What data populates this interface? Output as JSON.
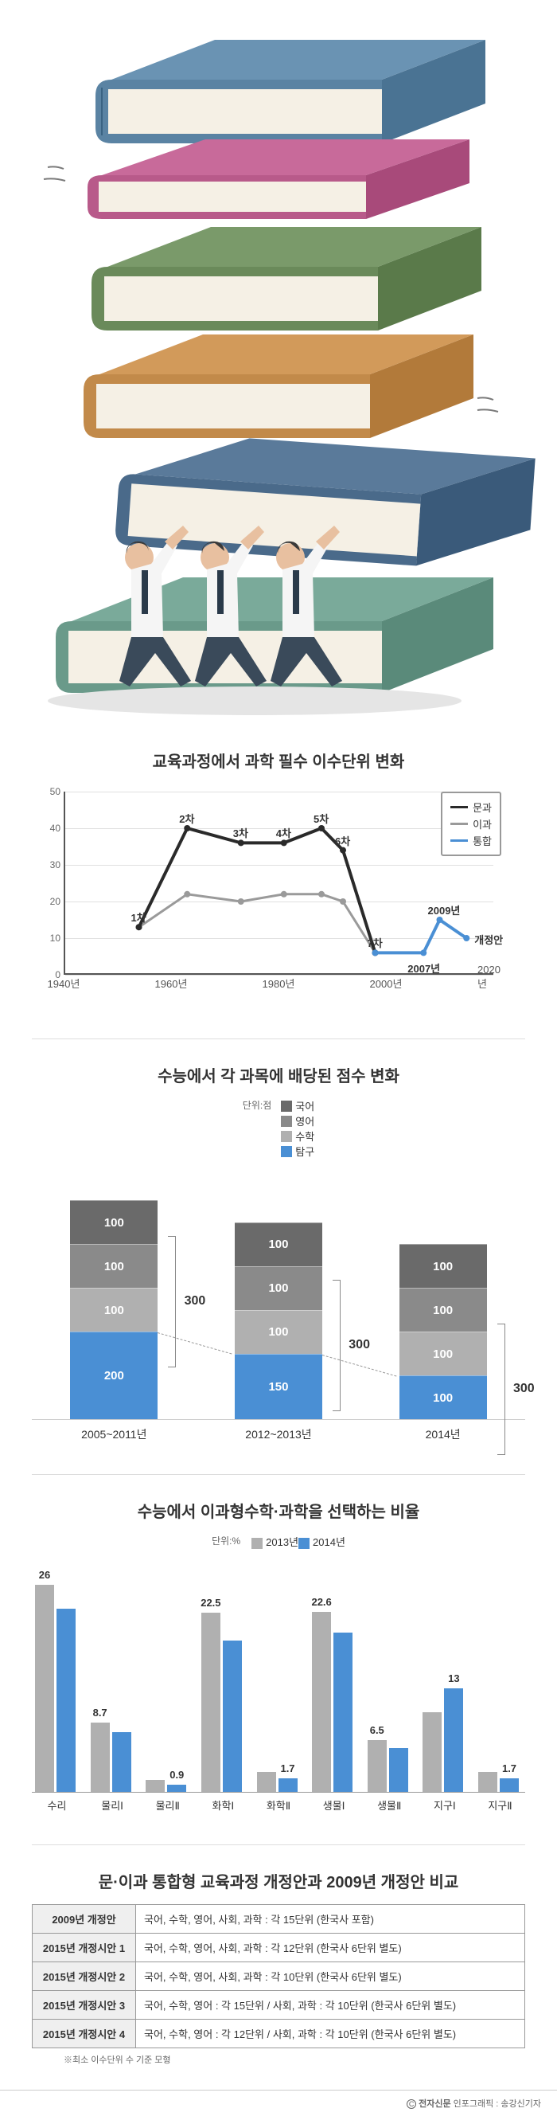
{
  "colors": {
    "book_blue": "#5a83a3",
    "book_magenta": "#b85a8a",
    "book_green": "#6a8a5a",
    "book_orange": "#c28a4a",
    "book_navy": "#4a6a8a",
    "book_teal": "#6a9a8a",
    "skin": "#e8c0a0",
    "shirt": "#f5f5f5",
    "pants": "#3a4a5a",
    "tie": "#2a3a4a",
    "line_munkwa": "#2a2a2a",
    "line_igwa": "#9a9a9a",
    "line_tonghap": "#4a8fd4",
    "bar_gugeo": "#6a6a6a",
    "bar_yeongeo": "#8a8a8a",
    "bar_suhak": "#b0b0b0",
    "bar_tamgu": "#4a8fd4",
    "gb_2013": "#b0b0b0",
    "gb_2014": "#4a8fd4",
    "grid": "#e0e0e0",
    "axis": "#555555",
    "table_header": "#efefef"
  },
  "line_chart": {
    "title": "교육과정에서 과학 필수 이수단위 변화",
    "legend": [
      {
        "label": "문과",
        "color_key": "line_munkwa"
      },
      {
        "label": "이과",
        "color_key": "line_igwa"
      },
      {
        "label": "통합",
        "color_key": "line_tonghap"
      }
    ],
    "ylim": [
      0,
      50
    ],
    "ytick_step": 10,
    "xlim": [
      1940,
      2020
    ],
    "xtick_step": 20,
    "xticks": [
      "1940년",
      "1960년",
      "1980년",
      "2000년",
      "2020년"
    ],
    "series": {
      "munkwa": [
        {
          "x": 1954,
          "y": 13,
          "label": "1차"
        },
        {
          "x": 1963,
          "y": 40,
          "label": "2차"
        },
        {
          "x": 1973,
          "y": 36,
          "label": "3차"
        },
        {
          "x": 1981,
          "y": 36,
          "label": "4차"
        },
        {
          "x": 1988,
          "y": 40,
          "label": "5차"
        },
        {
          "x": 1992,
          "y": 34,
          "label": "6차"
        },
        {
          "x": 1998,
          "y": 6,
          "label": "7차"
        }
      ],
      "igwa": [
        {
          "x": 1954,
          "y": 13
        },
        {
          "x": 1963,
          "y": 22
        },
        {
          "x": 1973,
          "y": 20
        },
        {
          "x": 1981,
          "y": 22
        },
        {
          "x": 1988,
          "y": 22
        },
        {
          "x": 1992,
          "y": 20
        },
        {
          "x": 1998,
          "y": 6
        }
      ],
      "tonghap": [
        {
          "x": 1998,
          "y": 6
        },
        {
          "x": 2007,
          "y": 6,
          "label": "2007년",
          "label_pos": "below"
        },
        {
          "x": 2010,
          "y": 15,
          "label": "2009년",
          "label_pos": "above"
        },
        {
          "x": 2015,
          "y": 10,
          "label": "개정안",
          "label_pos": "right"
        }
      ]
    }
  },
  "stacked_bar": {
    "title": "수능에서 각 과목에 배당된 점수 변화",
    "unit": "단위:점",
    "legend": [
      {
        "label": "국어",
        "color_key": "bar_gugeo"
      },
      {
        "label": "영어",
        "color_key": "bar_yeongeo"
      },
      {
        "label": "수학",
        "color_key": "bar_suhak"
      },
      {
        "label": "탐구",
        "color_key": "bar_tamgu"
      }
    ],
    "xlabels": [
      "2005~2011년",
      "2012~2013년",
      "2014년"
    ],
    "total_label": "300",
    "groups": [
      {
        "segs": [
          100,
          100,
          100,
          200
        ]
      },
      {
        "segs": [
          100,
          100,
          100,
          150
        ]
      },
      {
        "segs": [
          100,
          100,
          100,
          100
        ]
      }
    ],
    "y_scale": 0.55
  },
  "grouped_bar": {
    "title": "수능에서 이과형수학·과학을 선택하는 비율",
    "unit": "단위:%",
    "legend": [
      {
        "label": "2013년",
        "color_key": "gb_2013"
      },
      {
        "label": "2014년",
        "color_key": "gb_2014"
      }
    ],
    "ymax": 30,
    "categories": [
      "수리",
      "물리Ⅰ",
      "물리Ⅱ",
      "화학Ⅰ",
      "화학Ⅱ",
      "생물Ⅰ",
      "생물Ⅱ",
      "지구Ⅰ",
      "지구Ⅱ"
    ],
    "values_2013": [
      26,
      8.7,
      1.5,
      22.5,
      2.5,
      22.6,
      6.5,
      10,
      2.5
    ],
    "values_2014": [
      23,
      7.5,
      0.9,
      19,
      1.7,
      20,
      5.5,
      13,
      1.7
    ],
    "shown_labels_2013": [
      26,
      8.7,
      null,
      22.5,
      null,
      22.6,
      6.5,
      null,
      null
    ],
    "shown_labels_2014": [
      null,
      null,
      0.9,
      null,
      1.7,
      null,
      null,
      13,
      1.7
    ]
  },
  "table": {
    "title": "문·이과 통합형 교육과정 개정안과 2009년 개정안 비교",
    "rows": [
      {
        "h": "2009년 개정안",
        "d": "국어, 수학, 영어, 사회, 과학 : 각 15단위 (한국사 포함)"
      },
      {
        "h": "2015년 개정시안 1",
        "d": "국어, 수학, 영어, 사회, 과학 : 각 12단위 (한국사 6단위 별도)"
      },
      {
        "h": "2015년 개정시안 2",
        "d": "국어, 수학, 영어, 사회, 과학 : 각 10단위 (한국사 6단위 별도)"
      },
      {
        "h": "2015년 개정시안 3",
        "d": "국어, 수학, 영어 : 각 15단위 / 사회, 과학 : 각 10단위 (한국사 6단위 별도)"
      },
      {
        "h": "2015년 개정시안 4",
        "d": "국어, 수학, 영어 : 각 12단위 / 사회, 과학 : 각 10단위 (한국사 6단위 별도)"
      }
    ],
    "note": "※최소 이수단위 수 기준 모형"
  },
  "footer": {
    "brand": "전자신문",
    "credit": "인포그래픽 : 송강신기자"
  }
}
